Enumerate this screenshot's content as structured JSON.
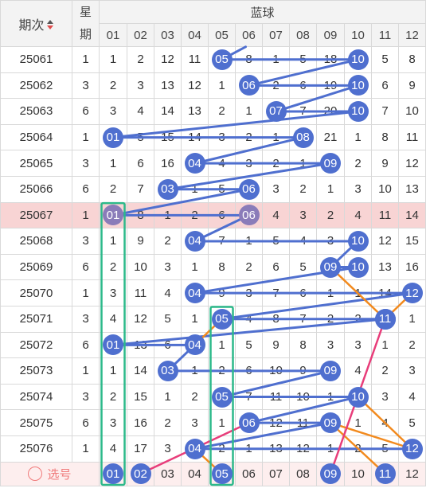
{
  "header": {
    "issue_label": "期次",
    "week_label": "星期",
    "blue_label": "蓝球",
    "blue_numbers": [
      "01",
      "02",
      "03",
      "04",
      "05",
      "06",
      "07",
      "08",
      "09",
      "10",
      "11",
      "12"
    ]
  },
  "rows": [
    {
      "issue": "25061",
      "week": "1",
      "cells": [
        "1",
        "2",
        "12",
        "11",
        "05",
        "8",
        "1",
        "5",
        "18",
        "10",
        "5",
        "8"
      ],
      "hit": 5
    },
    {
      "issue": "25062",
      "week": "3",
      "cells": [
        "2",
        "3",
        "13",
        "12",
        "1",
        "06",
        "2",
        "6",
        "19",
        "10",
        "6",
        "9"
      ],
      "hit": 6
    },
    {
      "issue": "25063",
      "week": "6",
      "cells": [
        "3",
        "4",
        "14",
        "13",
        "2",
        "1",
        "07",
        "7",
        "20",
        "10",
        "7",
        "10"
      ],
      "hit": 7
    },
    {
      "issue": "25064",
      "week": "1",
      "cells": [
        "01",
        "5",
        "15",
        "14",
        "3",
        "2",
        "1",
        "08",
        "21",
        "1",
        "8",
        "11"
      ],
      "hit": 1
    },
    {
      "issue": "25065",
      "week": "3",
      "cells": [
        "1",
        "6",
        "16",
        "04",
        "4",
        "3",
        "2",
        "1",
        "09",
        "2",
        "9",
        "12"
      ],
      "hit": 4
    },
    {
      "issue": "25066",
      "week": "6",
      "cells": [
        "2",
        "7",
        "03",
        "1",
        "5",
        "06",
        "3",
        "2",
        "1",
        "3",
        "10",
        "13"
      ],
      "hit": 3
    },
    {
      "issue": "25067",
      "week": "1",
      "cells": [
        "01",
        "8",
        "1",
        "2",
        "6",
        "06",
        "4",
        "3",
        "2",
        "4",
        "11",
        "14"
      ],
      "hit": 1,
      "highlight": true
    },
    {
      "issue": "25068",
      "week": "3",
      "cells": [
        "1",
        "9",
        "2",
        "04",
        "7",
        "1",
        "5",
        "4",
        "3",
        "10",
        "12",
        "15"
      ],
      "hit": 4
    },
    {
      "issue": "25069",
      "week": "6",
      "cells": [
        "2",
        "10",
        "3",
        "1",
        "8",
        "2",
        "6",
        "5",
        "09",
        "10",
        "13",
        "16"
      ],
      "hit": 9
    },
    {
      "issue": "25070",
      "week": "1",
      "cells": [
        "3",
        "11",
        "4",
        "04",
        "9",
        "3",
        "7",
        "6",
        "1",
        "1",
        "14",
        "12"
      ],
      "hit": 4
    },
    {
      "issue": "25071",
      "week": "3",
      "cells": [
        "4",
        "12",
        "5",
        "1",
        "05",
        "4",
        "8",
        "7",
        "2",
        "2",
        "11",
        "1"
      ],
      "hit": 5
    },
    {
      "issue": "25072",
      "week": "6",
      "cells": [
        "01",
        "13",
        "6",
        "04",
        "1",
        "5",
        "9",
        "8",
        "3",
        "3",
        "1",
        "2"
      ],
      "hit": 1
    },
    {
      "issue": "25073",
      "week": "1",
      "cells": [
        "1",
        "14",
        "03",
        "1",
        "2",
        "6",
        "10",
        "9",
        "09",
        "4",
        "2",
        "3"
      ],
      "hit": 3
    },
    {
      "issue": "25074",
      "week": "3",
      "cells": [
        "2",
        "15",
        "1",
        "2",
        "05",
        "7",
        "11",
        "10",
        "1",
        "10",
        "3",
        "4"
      ],
      "hit": 5
    },
    {
      "issue": "25075",
      "week": "6",
      "cells": [
        "3",
        "16",
        "2",
        "3",
        "1",
        "06",
        "12",
        "11",
        "09",
        "1",
        "4",
        "5"
      ],
      "hit": 6
    },
    {
      "issue": "25076",
      "week": "1",
      "cells": [
        "4",
        "17",
        "3",
        "04",
        "2",
        "1",
        "13",
        "12",
        "1",
        "2",
        "5",
        "12"
      ],
      "hit": 4
    }
  ],
  "pick": {
    "label": "选号",
    "numbers": [
      "01",
      "02",
      "03",
      "04",
      "05",
      "06",
      "07",
      "08",
      "09",
      "10",
      "11",
      "12"
    ],
    "selected": [
      "01",
      "02",
      "05",
      "09",
      "11"
    ]
  },
  "colors": {
    "ball": "#4f6fcf",
    "ball_highlight": "#8a7cb9",
    "trend_line": "#4f6fcf",
    "orange_line": "#f28a1e",
    "pink_line": "#e83d7a",
    "green_box": "#2cb98a",
    "highlight_row": "#f8d4d4",
    "pick_row": "#fdeeee"
  },
  "ball_groups": [
    {
      "label": "blue-trend",
      "balls": [
        [
          0,
          4
        ],
        [
          0,
          9
        ],
        [
          1,
          5
        ],
        [
          1,
          9
        ],
        [
          2,
          6
        ],
        [
          2,
          9
        ],
        [
          3,
          0
        ],
        [
          3,
          7
        ],
        [
          4,
          3
        ],
        [
          4,
          8
        ],
        [
          5,
          2
        ],
        [
          5,
          5
        ],
        [
          6,
          0
        ],
        [
          6,
          5
        ],
        [
          7,
          3
        ],
        [
          7,
          9
        ],
        [
          8,
          8
        ],
        [
          8,
          9
        ],
        [
          9,
          3
        ],
        [
          9,
          11
        ],
        [
          10,
          4
        ],
        [
          10,
          10
        ],
        [
          11,
          0
        ],
        [
          11,
          3
        ],
        [
          12,
          2
        ],
        [
          12,
          8
        ],
        [
          13,
          4
        ],
        [
          13,
          9
        ],
        [
          14,
          5
        ],
        [
          14,
          8
        ],
        [
          15,
          3
        ],
        [
          15,
          11
        ]
      ]
    }
  ]
}
